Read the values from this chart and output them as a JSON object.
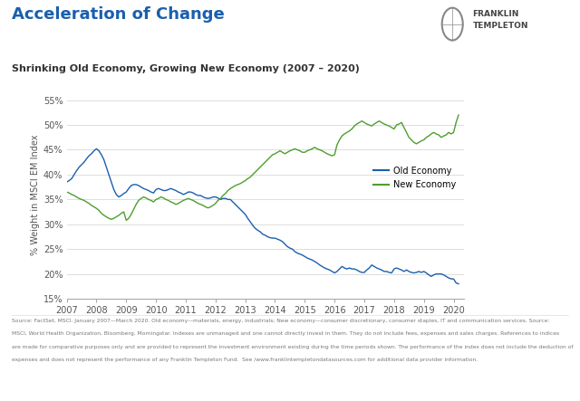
{
  "title": "Acceleration of Change",
  "subtitle": "Shrinking Old Economy, Growing New Economy (2007 – 2020)",
  "ylabel": "% Weight in MSCI EM Index",
  "ylim": [
    15,
    57
  ],
  "yticks": [
    15,
    20,
    25,
    30,
    35,
    40,
    45,
    50,
    55
  ],
  "ytick_labels": [
    "15%",
    "20%",
    "25%",
    "30%",
    "35%",
    "40%",
    "45%",
    "50%",
    "55%"
  ],
  "xlim": [
    2007.0,
    2020.35
  ],
  "xticks": [
    2007,
    2008,
    2009,
    2010,
    2011,
    2012,
    2013,
    2014,
    2015,
    2016,
    2017,
    2018,
    2019,
    2020
  ],
  "old_color": "#1b5fad",
  "new_color": "#4d9e2e",
  "bg_color": "#ffffff",
  "title_color": "#1b5fad",
  "footnote_line1": "Source: FactSet, MSCI. January 2007—March 2020. Old economy—materials, energy, industrials; New economy—consumer discretionary, consumer staples, IT and communication services. Source:",
  "footnote_line2": "MSCI, World Health Organization, Bloomberg, Morningstar. Indexes are unmanaged and one cannot directly invest in them. They do not include fees, expenses and sales charges. References to indices",
  "footnote_line3": "are made for comparative purposes only and are provided to represent the investment environment existing during the time periods shown. The performance of the index does not include the deduction of",
  "footnote_line4": "expenses and does not represent the performance of any Franklin Templeton Fund.  See /www.franklintempletondatasources.com for additional data provider information.",
  "old_economy_x": [
    2007.0,
    2007.083,
    2007.167,
    2007.25,
    2007.333,
    2007.417,
    2007.5,
    2007.583,
    2007.667,
    2007.75,
    2007.833,
    2007.917,
    2008.0,
    2008.083,
    2008.167,
    2008.25,
    2008.333,
    2008.417,
    2008.5,
    2008.583,
    2008.667,
    2008.75,
    2008.833,
    2008.917,
    2009.0,
    2009.083,
    2009.167,
    2009.25,
    2009.333,
    2009.417,
    2009.5,
    2009.583,
    2009.667,
    2009.75,
    2009.833,
    2009.917,
    2010.0,
    2010.083,
    2010.167,
    2010.25,
    2010.333,
    2010.417,
    2010.5,
    2010.583,
    2010.667,
    2010.75,
    2010.833,
    2010.917,
    2011.0,
    2011.083,
    2011.167,
    2011.25,
    2011.333,
    2011.417,
    2011.5,
    2011.583,
    2011.667,
    2011.75,
    2011.833,
    2011.917,
    2012.0,
    2012.083,
    2012.167,
    2012.25,
    2012.333,
    2012.417,
    2012.5,
    2012.583,
    2012.667,
    2012.75,
    2012.833,
    2012.917,
    2013.0,
    2013.083,
    2013.167,
    2013.25,
    2013.333,
    2013.417,
    2013.5,
    2013.583,
    2013.667,
    2013.75,
    2013.833,
    2013.917,
    2014.0,
    2014.083,
    2014.167,
    2014.25,
    2014.333,
    2014.417,
    2014.5,
    2014.583,
    2014.667,
    2014.75,
    2014.833,
    2014.917,
    2015.0,
    2015.083,
    2015.167,
    2015.25,
    2015.333,
    2015.417,
    2015.5,
    2015.583,
    2015.667,
    2015.75,
    2015.833,
    2015.917,
    2016.0,
    2016.083,
    2016.167,
    2016.25,
    2016.333,
    2016.417,
    2016.5,
    2016.583,
    2016.667,
    2016.75,
    2016.833,
    2016.917,
    2017.0,
    2017.083,
    2017.167,
    2017.25,
    2017.333,
    2017.417,
    2017.5,
    2017.583,
    2017.667,
    2017.75,
    2017.833,
    2017.917,
    2018.0,
    2018.083,
    2018.167,
    2018.25,
    2018.333,
    2018.417,
    2018.5,
    2018.583,
    2018.667,
    2018.75,
    2018.833,
    2018.917,
    2019.0,
    2019.083,
    2019.167,
    2019.25,
    2019.333,
    2019.417,
    2019.5,
    2019.583,
    2019.667,
    2019.75,
    2019.833,
    2019.917,
    2020.0,
    2020.083,
    2020.167
  ],
  "old_economy_y": [
    38.5,
    38.8,
    39.2,
    40.0,
    40.8,
    41.5,
    42.0,
    42.5,
    43.2,
    43.8,
    44.2,
    44.8,
    45.2,
    44.8,
    44.0,
    43.0,
    41.5,
    40.0,
    38.5,
    37.0,
    36.0,
    35.5,
    35.8,
    36.2,
    36.5,
    37.2,
    37.8,
    38.0,
    38.0,
    37.8,
    37.5,
    37.2,
    37.0,
    36.8,
    36.5,
    36.3,
    37.0,
    37.2,
    37.0,
    36.8,
    36.8,
    37.0,
    37.2,
    37.0,
    36.8,
    36.5,
    36.3,
    36.0,
    36.2,
    36.5,
    36.5,
    36.3,
    36.0,
    35.8,
    35.8,
    35.5,
    35.3,
    35.2,
    35.3,
    35.5,
    35.5,
    35.3,
    35.0,
    35.2,
    35.2,
    35.0,
    35.0,
    34.5,
    34.0,
    33.5,
    33.0,
    32.5,
    32.0,
    31.2,
    30.5,
    29.8,
    29.2,
    28.8,
    28.5,
    28.0,
    27.8,
    27.5,
    27.3,
    27.2,
    27.2,
    27.0,
    26.8,
    26.5,
    26.0,
    25.5,
    25.2,
    25.0,
    24.5,
    24.2,
    24.0,
    23.8,
    23.5,
    23.2,
    23.0,
    22.8,
    22.5,
    22.2,
    21.8,
    21.5,
    21.2,
    21.0,
    20.8,
    20.5,
    20.2,
    20.5,
    21.0,
    21.5,
    21.2,
    21.0,
    21.2,
    21.0,
    21.0,
    20.8,
    20.5,
    20.3,
    20.3,
    20.8,
    21.2,
    21.8,
    21.5,
    21.2,
    21.0,
    20.8,
    20.5,
    20.5,
    20.3,
    20.2,
    21.0,
    21.2,
    21.0,
    20.8,
    20.5,
    20.8,
    20.5,
    20.3,
    20.2,
    20.3,
    20.5,
    20.3,
    20.5,
    20.2,
    19.8,
    19.5,
    19.8,
    20.0,
    20.0,
    20.0,
    19.8,
    19.5,
    19.2,
    19.0,
    19.0,
    18.2,
    18.0
  ],
  "new_economy_x": [
    2007.0,
    2007.083,
    2007.167,
    2007.25,
    2007.333,
    2007.417,
    2007.5,
    2007.583,
    2007.667,
    2007.75,
    2007.833,
    2007.917,
    2008.0,
    2008.083,
    2008.167,
    2008.25,
    2008.333,
    2008.417,
    2008.5,
    2008.583,
    2008.667,
    2008.75,
    2008.833,
    2008.917,
    2009.0,
    2009.083,
    2009.167,
    2009.25,
    2009.333,
    2009.417,
    2009.5,
    2009.583,
    2009.667,
    2009.75,
    2009.833,
    2009.917,
    2010.0,
    2010.083,
    2010.167,
    2010.25,
    2010.333,
    2010.417,
    2010.5,
    2010.583,
    2010.667,
    2010.75,
    2010.833,
    2010.917,
    2011.0,
    2011.083,
    2011.167,
    2011.25,
    2011.333,
    2011.417,
    2011.5,
    2011.583,
    2011.667,
    2011.75,
    2011.833,
    2011.917,
    2012.0,
    2012.083,
    2012.167,
    2012.25,
    2012.333,
    2012.417,
    2012.5,
    2012.583,
    2012.667,
    2012.75,
    2012.833,
    2012.917,
    2013.0,
    2013.083,
    2013.167,
    2013.25,
    2013.333,
    2013.417,
    2013.5,
    2013.583,
    2013.667,
    2013.75,
    2013.833,
    2013.917,
    2014.0,
    2014.083,
    2014.167,
    2014.25,
    2014.333,
    2014.417,
    2014.5,
    2014.583,
    2014.667,
    2014.75,
    2014.833,
    2014.917,
    2015.0,
    2015.083,
    2015.167,
    2015.25,
    2015.333,
    2015.417,
    2015.5,
    2015.583,
    2015.667,
    2015.75,
    2015.833,
    2015.917,
    2016.0,
    2016.083,
    2016.167,
    2016.25,
    2016.333,
    2016.417,
    2016.5,
    2016.583,
    2016.667,
    2016.75,
    2016.833,
    2016.917,
    2017.0,
    2017.083,
    2017.167,
    2017.25,
    2017.333,
    2017.417,
    2017.5,
    2017.583,
    2017.667,
    2017.75,
    2017.833,
    2017.917,
    2018.0,
    2018.083,
    2018.167,
    2018.25,
    2018.333,
    2018.417,
    2018.5,
    2018.583,
    2018.667,
    2018.75,
    2018.833,
    2018.917,
    2019.0,
    2019.083,
    2019.167,
    2019.25,
    2019.333,
    2019.417,
    2019.5,
    2019.583,
    2019.667,
    2019.75,
    2019.833,
    2019.917,
    2020.0,
    2020.083,
    2020.167
  ],
  "new_economy_y": [
    36.5,
    36.3,
    36.0,
    35.8,
    35.5,
    35.2,
    35.0,
    34.8,
    34.5,
    34.2,
    33.8,
    33.5,
    33.2,
    32.8,
    32.2,
    31.8,
    31.5,
    31.2,
    31.0,
    31.2,
    31.5,
    31.8,
    32.2,
    32.5,
    30.8,
    31.2,
    32.0,
    33.0,
    34.0,
    34.8,
    35.2,
    35.5,
    35.3,
    35.0,
    34.8,
    34.5,
    35.0,
    35.2,
    35.5,
    35.3,
    35.0,
    34.8,
    34.5,
    34.3,
    34.0,
    34.2,
    34.5,
    34.8,
    35.0,
    35.2,
    35.0,
    34.8,
    34.5,
    34.2,
    34.0,
    33.8,
    33.5,
    33.3,
    33.5,
    33.8,
    34.2,
    34.8,
    35.2,
    35.8,
    36.2,
    36.8,
    37.2,
    37.5,
    37.8,
    38.0,
    38.2,
    38.5,
    38.8,
    39.2,
    39.5,
    40.0,
    40.5,
    41.0,
    41.5,
    42.0,
    42.5,
    43.0,
    43.5,
    44.0,
    44.2,
    44.5,
    44.8,
    44.5,
    44.2,
    44.5,
    44.8,
    45.0,
    45.2,
    45.0,
    44.8,
    44.5,
    44.5,
    44.8,
    45.0,
    45.2,
    45.5,
    45.2,
    45.0,
    44.8,
    44.5,
    44.2,
    44.0,
    43.8,
    44.0,
    46.0,
    47.0,
    47.8,
    48.2,
    48.5,
    48.8,
    49.2,
    49.8,
    50.2,
    50.5,
    50.8,
    50.5,
    50.2,
    50.0,
    49.8,
    50.2,
    50.5,
    50.8,
    50.5,
    50.2,
    50.0,
    49.8,
    49.5,
    49.2,
    50.0,
    50.2,
    50.5,
    49.5,
    48.5,
    47.5,
    47.0,
    46.5,
    46.2,
    46.5,
    46.8,
    47.0,
    47.5,
    47.8,
    48.2,
    48.5,
    48.2,
    48.0,
    47.5,
    47.8,
    48.0,
    48.5,
    48.2,
    48.5,
    50.5,
    52.0
  ]
}
